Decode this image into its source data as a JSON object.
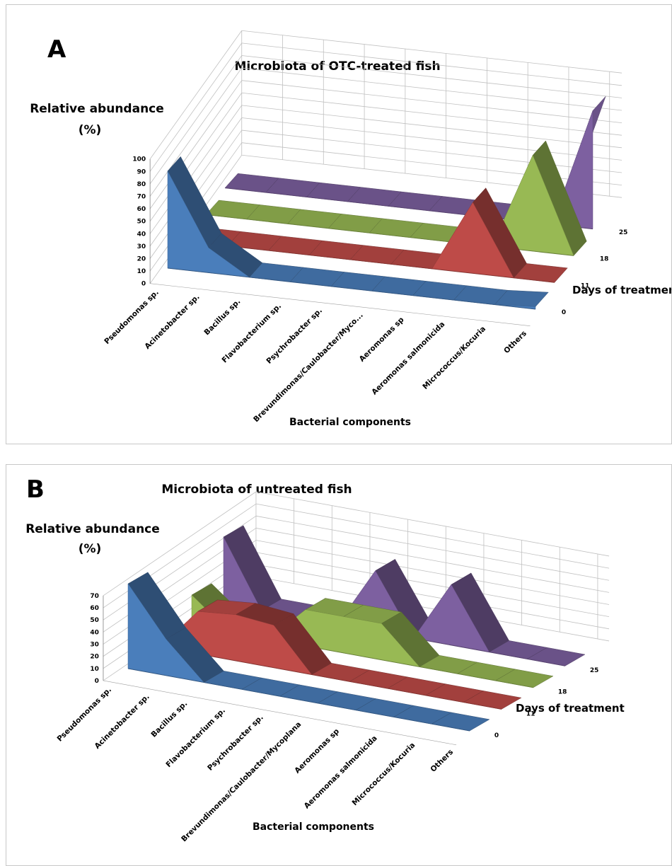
{
  "chart_data": [
    {
      "panel_label": "A",
      "type": "area",
      "view": "3d",
      "title": "Microbiota of OTC-treated fish",
      "ylabel": [
        "Relative abundance",
        "(%)"
      ],
      "zlabel": "Days of treatment",
      "xlabel": "Bacterial components",
      "ylim": [
        0,
        100
      ],
      "yticks": [
        0,
        10,
        20,
        30,
        40,
        50,
        60,
        70,
        80,
        90,
        100
      ],
      "grid": true,
      "categories": [
        "Pseudomonas sp.",
        "Acinetobacter sp.",
        "Bacillus sp.",
        "Flavobacterium sp.",
        "Psychrobacter sp.",
        "Brevundimonas/Caulobacter/Myco...",
        "Aeromonas sp",
        "Aeromonas salmonicida",
        "Micrococcus/Kocuria",
        "Others"
      ],
      "series": [
        {
          "name": "0",
          "color": "#4a7ebb",
          "values": [
            78,
            20,
            0,
            0,
            0,
            0,
            0,
            0,
            0,
            2
          ]
        },
        {
          "name": "11",
          "color": "#be4b48",
          "values": [
            0,
            0,
            0,
            0,
            0,
            0,
            0,
            57,
            0,
            0
          ]
        },
        {
          "name": "18",
          "color": "#98b954",
          "values": [
            0,
            0,
            0,
            0,
            0,
            0,
            0,
            0,
            77,
            0
          ]
        },
        {
          "name": "25",
          "color": "#7d60a0",
          "values": [
            0,
            0,
            0,
            0,
            0,
            0,
            0,
            0,
            0,
            95
          ]
        }
      ]
    },
    {
      "panel_label": "B",
      "type": "area",
      "view": "3d",
      "title": "Microbiota of untreated fish",
      "ylabel": [
        "Relative abundance",
        "(%)"
      ],
      "zlabel": "Days of treatment",
      "xlabel": "Bacterial components",
      "ylim": [
        0,
        70
      ],
      "yticks": [
        0,
        10,
        20,
        30,
        40,
        50,
        60,
        70
      ],
      "grid": true,
      "categories": [
        "Pseudomonas sp.",
        "Acinetobacter sp.",
        "Bacillus sp.",
        "Flavobacterium sp.",
        "Psychrobacter sp.",
        "Brevundimonas/Caulobacter/Mycoplana",
        "Aeromonas sp",
        "Aeromonas salmonicida",
        "Micrococcus/Kocuria",
        "Others"
      ],
      "series": [
        {
          "name": "0",
          "color": "#4a7ebb",
          "values": [
            70,
            30,
            0,
            0,
            0,
            0,
            0,
            0,
            0,
            0
          ]
        },
        {
          "name": "11",
          "color": "#be4b48",
          "values": [
            0,
            35,
            38,
            35,
            0,
            0,
            0,
            0,
            0,
            0
          ]
        },
        {
          "name": "18",
          "color": "#98b954",
          "values": [
            25,
            0,
            0,
            30,
            30,
            30,
            0,
            0,
            0,
            0
          ]
        },
        {
          "name": "25",
          "color": "#7d60a0",
          "values": [
            55,
            0,
            0,
            0,
            50,
            0,
            50,
            0,
            0,
            0
          ]
        }
      ]
    }
  ]
}
